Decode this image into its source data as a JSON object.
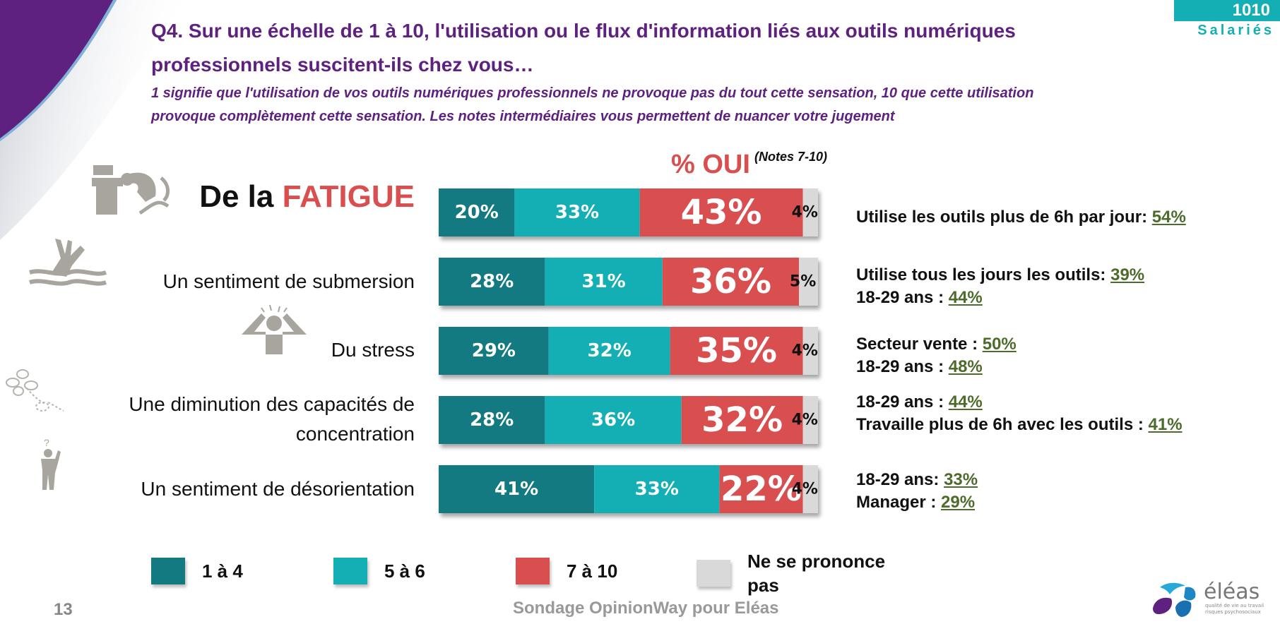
{
  "header": {
    "title_line1": "Q4. Sur une échelle de 1 à 10, l'utilisation ou le flux d'information liés aux outils numériques",
    "title_line2": "professionnels suscitent-ils chez vous…",
    "subtitle_line1": "1 signifie que l'utilisation de vos outils numériques professionnels ne provoque pas du tout cette sensation, 10 que cette utilisation",
    "subtitle_line2": "provoque complètement cette sensation. Les notes intermédiaires vous permettent de nuancer votre jugement"
  },
  "badge": {
    "count": "1010",
    "label": "Salariés"
  },
  "oui_header": {
    "label": "% OUI",
    "note": "(Notes 7-10)"
  },
  "rows": [
    {
      "label_prefix": "De la ",
      "label_highlight": "FATIGUE",
      "icon": "tired-worker-icon",
      "insights": [
        {
          "text": "Utilise les outils plus de 6h par jour: ",
          "value": "54%"
        }
      ]
    },
    {
      "label": "Un sentiment de submersion",
      "icon": "drowning-hand-icon",
      "insights": [
        {
          "text": "Utilise tous les jours les outils: ",
          "value": "39%"
        },
        {
          "text": "18-29 ans : ",
          "value": "44%"
        }
      ]
    },
    {
      "label": "Du stress",
      "icon": "stressed-person-icon",
      "insights": [
        {
          "text": "Secteur vente : ",
          "value": "50%"
        },
        {
          "text": "18-29 ans : ",
          "value": "48%"
        }
      ]
    },
    {
      "label_line1": "Une diminution des capacités de",
      "label_line2": "concentration",
      "icon": "flower-icon",
      "insights": [
        {
          "text": "18-29 ans : ",
          "value": "44%"
        },
        {
          "text": "Travaille plus de 6h avec les outils : ",
          "value": "41%"
        }
      ]
    },
    {
      "label": "Un sentiment de désorientation",
      "icon": "confused-person-icon",
      "insights": [
        {
          "text": "18-29 ans: ",
          "value": "33%"
        },
        {
          "text": "Manager : ",
          "value": "29%"
        }
      ]
    }
  ],
  "legend": [
    {
      "label": "1 à 4",
      "color": "#127a80"
    },
    {
      "label": "5 à 6",
      "color": "#14aeb5"
    },
    {
      "label": "7 à 10",
      "color": "#d94f50"
    },
    {
      "label_line1": "Ne se prononce",
      "label_line2": "pas",
      "color": "#d9d9d9"
    }
  ],
  "footer": {
    "source": "Sondage OpinionWay pour Eléas",
    "page": "13"
  },
  "logo": {
    "name": "éléas",
    "tagline1": "qualité de vie au travail",
    "tagline2": "risques psychosociaux"
  },
  "chart_data": {
    "type": "bar",
    "orientation": "horizontal",
    "stacked": true,
    "title": "% OUI (Notes 7-10)",
    "categories": [
      "De la FATIGUE",
      "Un sentiment de submersion",
      "Du stress",
      "Une diminution des capacités de concentration",
      "Un sentiment de désorientation"
    ],
    "series": [
      {
        "name": "1 à 4",
        "color": "#127a80",
        "values": [
          20,
          28,
          29,
          28,
          41
        ]
      },
      {
        "name": "5 à 6",
        "color": "#14aeb5",
        "values": [
          33,
          31,
          32,
          36,
          33
        ]
      },
      {
        "name": "7 à 10",
        "color": "#d94f50",
        "values": [
          43,
          36,
          35,
          32,
          22
        ]
      },
      {
        "name": "Ne se prononce pas",
        "color": "#d9d9d9",
        "values": [
          4,
          5,
          4,
          4,
          4
        ]
      }
    ],
    "unit": "%",
    "xlim": [
      0,
      100
    ],
    "legend": "bottom",
    "grid": false
  }
}
